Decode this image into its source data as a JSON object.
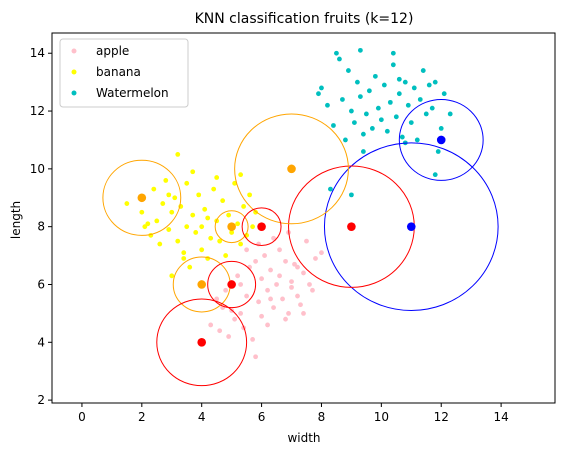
{
  "chart_data": {
    "type": "scatter",
    "title": "KNN classification fruits (k=12)",
    "xlabel": "width",
    "ylabel": "length",
    "xlim": [
      -1.0,
      15.8
    ],
    "ylim": [
      1.9,
      14.7
    ],
    "xticks": [
      0,
      2,
      4,
      6,
      8,
      10,
      12,
      14
    ],
    "yticks": [
      2,
      4,
      6,
      8,
      10,
      12,
      14
    ],
    "grid": false,
    "legend": {
      "placement": "top-left",
      "entries": [
        "apple",
        "banana",
        "Watermelon"
      ]
    },
    "series": [
      {
        "name": "apple",
        "color": "#ffc0cb",
        "points": [
          [
            4.3,
            4.6
          ],
          [
            4.5,
            5.5
          ],
          [
            4.6,
            4.4
          ],
          [
            4.7,
            5.2
          ],
          [
            4.8,
            5.8
          ],
          [
            4.9,
            4.2
          ],
          [
            5.0,
            5.1
          ],
          [
            5.1,
            4.8
          ],
          [
            5.2,
            6.3
          ],
          [
            5.3,
            5.0
          ],
          [
            5.4,
            4.5
          ],
          [
            5.5,
            5.6
          ],
          [
            5.6,
            6.6
          ],
          [
            5.7,
            4.1
          ],
          [
            5.8,
            3.5
          ],
          [
            5.9,
            5.4
          ],
          [
            6.0,
            4.9
          ],
          [
            6.0,
            6.2
          ],
          [
            6.1,
            7.0
          ],
          [
            6.2,
            5.8
          ],
          [
            6.3,
            6.5
          ],
          [
            6.4,
            5.2
          ],
          [
            6.5,
            6.0
          ],
          [
            6.6,
            7.2
          ],
          [
            6.7,
            5.5
          ],
          [
            6.8,
            6.8
          ],
          [
            6.9,
            5.0
          ],
          [
            7.0,
            6.1
          ],
          [
            7.1,
            6.7
          ],
          [
            7.2,
            5.6
          ],
          [
            7.3,
            5.3
          ],
          [
            7.4,
            6.4
          ],
          [
            7.5,
            7.5
          ],
          [
            7.6,
            6.0
          ],
          [
            7.8,
            6.9
          ],
          [
            8.0,
            7.1
          ],
          [
            5.5,
            7.2
          ],
          [
            5.8,
            6.8
          ],
          [
            6.2,
            4.6
          ],
          [
            6.8,
            4.8
          ],
          [
            7.0,
            5.9
          ],
          [
            5.3,
            6.0
          ],
          [
            6.6,
            6.3
          ],
          [
            7.2,
            6.6
          ],
          [
            6.4,
            7.6
          ],
          [
            6.9,
            7.8
          ],
          [
            7.4,
            5.0
          ],
          [
            5.9,
            7.4
          ],
          [
            6.3,
            5.5
          ],
          [
            7.7,
            5.8
          ]
        ]
      },
      {
        "name": "banana",
        "color": "#ffff00",
        "points": [
          [
            1.5,
            8.8
          ],
          [
            2.0,
            8.5
          ],
          [
            2.1,
            8.0
          ],
          [
            2.3,
            7.7
          ],
          [
            2.4,
            9.3
          ],
          [
            2.5,
            8.2
          ],
          [
            2.6,
            7.4
          ],
          [
            2.7,
            8.8
          ],
          [
            2.8,
            9.6
          ],
          [
            2.9,
            7.9
          ],
          [
            3.0,
            8.5
          ],
          [
            3.1,
            9.0
          ],
          [
            3.2,
            7.5
          ],
          [
            3.2,
            10.5
          ],
          [
            3.3,
            8.7
          ],
          [
            3.4,
            7.1
          ],
          [
            3.5,
            9.5
          ],
          [
            3.5,
            8.0
          ],
          [
            3.6,
            6.6
          ],
          [
            3.7,
            8.4
          ],
          [
            3.8,
            7.8
          ],
          [
            3.9,
            9.1
          ],
          [
            4.0,
            8.0
          ],
          [
            4.0,
            7.2
          ],
          [
            4.1,
            8.6
          ],
          [
            4.2,
            6.9
          ],
          [
            4.3,
            7.6
          ],
          [
            4.4,
            9.3
          ],
          [
            4.5,
            8.2
          ],
          [
            4.6,
            7.5
          ],
          [
            4.7,
            8.9
          ],
          [
            4.8,
            7.0
          ],
          [
            4.9,
            8.4
          ],
          [
            5.0,
            7.8
          ],
          [
            5.1,
            9.5
          ],
          [
            5.2,
            8.1
          ],
          [
            5.3,
            7.4
          ],
          [
            5.4,
            8.7
          ],
          [
            5.5,
            7.7
          ],
          [
            5.6,
            9.1
          ],
          [
            5.7,
            8.0
          ],
          [
            5.8,
            8.5
          ],
          [
            3.0,
            6.3
          ],
          [
            3.4,
            6.9
          ],
          [
            2.2,
            8.1
          ],
          [
            3.7,
            9.9
          ],
          [
            4.5,
            9.7
          ],
          [
            5.3,
            9.8
          ],
          [
            2.9,
            9.1
          ],
          [
            4.2,
            8.3
          ]
        ]
      },
      {
        "name": "Watermelon",
        "color": "#00bfbf",
        "points": [
          [
            7.9,
            12.6
          ],
          [
            8.0,
            12.8
          ],
          [
            8.2,
            12.2
          ],
          [
            8.4,
            11.5
          ],
          [
            8.5,
            14.0
          ],
          [
            8.6,
            13.8
          ],
          [
            8.7,
            12.4
          ],
          [
            8.8,
            11.0
          ],
          [
            8.9,
            13.4
          ],
          [
            9.0,
            12.0
          ],
          [
            9.1,
            11.6
          ],
          [
            9.2,
            13.0
          ],
          [
            9.3,
            12.5
          ],
          [
            9.4,
            11.2
          ],
          [
            9.5,
            11.9
          ],
          [
            9.6,
            12.7
          ],
          [
            9.7,
            11.4
          ],
          [
            9.8,
            13.2
          ],
          [
            9.9,
            12.1
          ],
          [
            10.0,
            11.7
          ],
          [
            10.1,
            12.9
          ],
          [
            10.2,
            11.3
          ],
          [
            10.3,
            12.3
          ],
          [
            10.4,
            13.6
          ],
          [
            10.5,
            11.8
          ],
          [
            10.6,
            12.6
          ],
          [
            10.7,
            11.1
          ],
          [
            10.8,
            13.0
          ],
          [
            10.9,
            12.2
          ],
          [
            11.0,
            11.6
          ],
          [
            11.1,
            12.8
          ],
          [
            11.2,
            11.0
          ],
          [
            11.3,
            12.4
          ],
          [
            11.4,
            13.4
          ],
          [
            11.5,
            11.9
          ],
          [
            11.6,
            12.9
          ],
          [
            11.7,
            12.1
          ],
          [
            11.8,
            13.0
          ],
          [
            12.0,
            11.4
          ],
          [
            12.1,
            12.6
          ],
          [
            12.3,
            11.9
          ],
          [
            11.9,
            10.6
          ],
          [
            10.8,
            10.9
          ],
          [
            9.4,
            10.6
          ],
          [
            9.0,
            9.1
          ],
          [
            8.3,
            9.3
          ],
          [
            10.4,
            14.0
          ],
          [
            9.3,
            14.1
          ],
          [
            10.6,
            13.1
          ],
          [
            11.8,
            9.8
          ]
        ]
      }
    ],
    "query_points": [
      {
        "x": 12,
        "y": 11,
        "class": "Watermelon",
        "color": "#0000ff",
        "radius": 1.4
      },
      {
        "x": 11,
        "y": 8,
        "class": "Watermelon",
        "color": "#0000ff",
        "radius": 2.9
      },
      {
        "x": 9,
        "y": 8,
        "class": "apple",
        "color": "#ff0000",
        "radius": 2.1
      },
      {
        "x": 7,
        "y": 10,
        "class": "banana",
        "color": "#ffa500",
        "radius": 1.9
      },
      {
        "x": 2,
        "y": 9,
        "class": "banana",
        "color": "#ffa500",
        "radius": 1.3
      },
      {
        "x": 5,
        "y": 8,
        "class": "banana",
        "color": "#ffa500",
        "radius": 0.55
      },
      {
        "x": 6,
        "y": 8,
        "class": "apple",
        "color": "#ff0000",
        "radius": 0.65
      },
      {
        "x": 4,
        "y": 6,
        "class": "banana",
        "color": "#ffa500",
        "radius": 0.95
      },
      {
        "x": 5,
        "y": 6,
        "class": "apple",
        "color": "#ff0000",
        "radius": 0.8
      },
      {
        "x": 4,
        "y": 4,
        "class": "apple",
        "color": "#ff0000",
        "radius": 1.5
      }
    ]
  }
}
